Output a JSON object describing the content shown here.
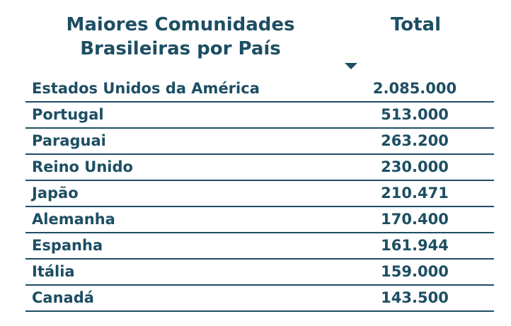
{
  "table": {
    "header": {
      "title_line1": "Maiores Comunidades",
      "title_line2": "Brasileiras por País",
      "total_label": "Total"
    },
    "accent_color": "#1d4e63",
    "sort_indicator": "caret-down-icon",
    "rows": [
      {
        "name": "Estados Unidos da América",
        "total": "2.085.000"
      },
      {
        "name": "Portugal",
        "total": "513.000"
      },
      {
        "name": "Paraguai",
        "total": "263.200"
      },
      {
        "name": "Reino Unido",
        "total": "230.000"
      },
      {
        "name": "Japão",
        "total": "210.471"
      },
      {
        "name": "Alemanha",
        "total": "170.400"
      },
      {
        "name": "Espanha",
        "total": "161.944"
      },
      {
        "name": "Itália",
        "total": "159.000"
      },
      {
        "name": "Canadá",
        "total": "143.500"
      }
    ]
  }
}
